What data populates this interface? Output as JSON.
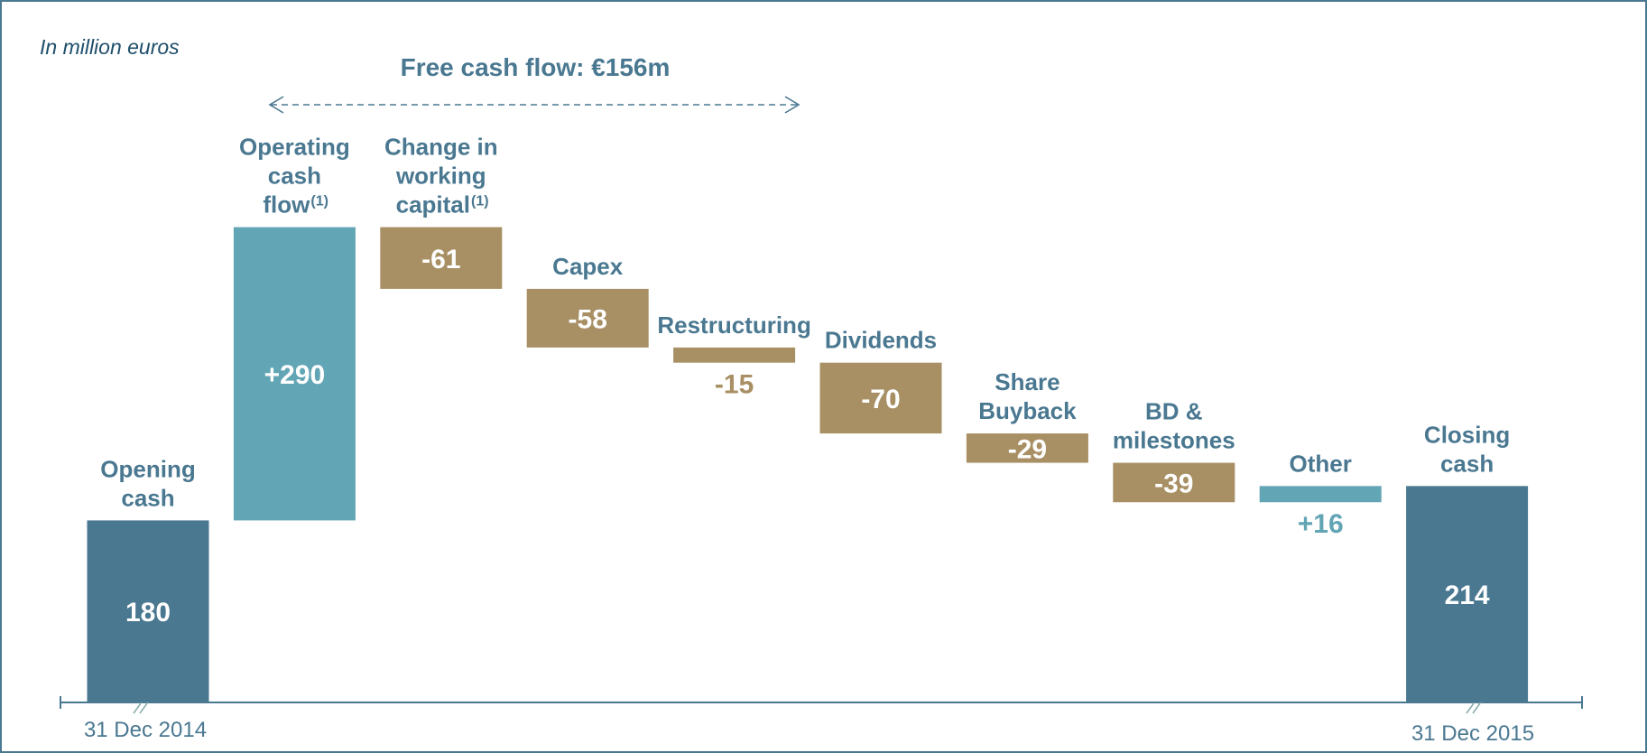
{
  "chart_data": {
    "type": "waterfall",
    "subtitle": "In million euros",
    "annotation": "Free cash flow: €156m",
    "categories": [
      [
        "Opening",
        "cash"
      ],
      [
        "Operating",
        "cash",
        "flow"
      ],
      [
        "Change in",
        "working",
        "capital"
      ],
      [
        "Capex"
      ],
      [
        "Restructuring"
      ],
      [
        "Dividends"
      ],
      [
        "Share",
        "Buyback"
      ],
      [
        "BD &",
        "milestones"
      ],
      [
        "Other"
      ],
      [
        "Closing",
        "cash"
      ]
    ],
    "category_notes": [
      null,
      "(1)",
      "(1)",
      null,
      null,
      null,
      null,
      null,
      null,
      null
    ],
    "values": [
      180,
      290,
      -61,
      -58,
      -15,
      -70,
      -29,
      -39,
      16,
      214
    ],
    "value_labels": [
      "180",
      "+290",
      "-61",
      "-58",
      "-15",
      "-70",
      "-29",
      "-39",
      "+16",
      "214"
    ],
    "x_labels": [
      "31 Dec 2014",
      "31 Dec 2015"
    ],
    "total_color": "#4a7891",
    "increase_color": "#62a5b5",
    "decrease_color": "#a89064",
    "ylim": [
      0,
      480
    ]
  }
}
